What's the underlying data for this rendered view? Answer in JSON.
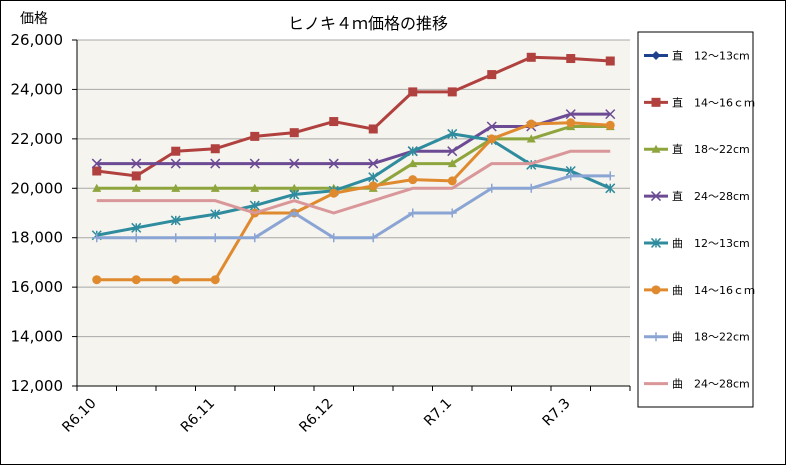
{
  "chart_data": {
    "type": "line",
    "title": "ヒノキ４ｍ価格の推移",
    "ylabel": "価格",
    "xlabel": "",
    "ylim": [
      12000,
      26000
    ],
    "yticks": [
      "12,000",
      "14,000",
      "16,000",
      "18,000",
      "20,000",
      "22,000",
      "24,000",
      "26,000"
    ],
    "x_labels": [
      {
        "index": 0,
        "label": "R6.10"
      },
      {
        "index": 3,
        "label": "R6.11"
      },
      {
        "index": 6,
        "label": "R6.12"
      },
      {
        "index": 9,
        "label": "R7.1"
      },
      {
        "index": 12,
        "label": "R7.3"
      }
    ],
    "grid": "horizontal",
    "legend_position": "right",
    "series": [
      {
        "name": "直　12～13cm",
        "color": "#1f3f8f",
        "marker": "diamond",
        "values": [
          null,
          null,
          null,
          null,
          null,
          null,
          null,
          null,
          null,
          null,
          null,
          null,
          null,
          null
        ]
      },
      {
        "name": "直　14～16ｃｍ",
        "color": "#b0413e",
        "marker": "square",
        "values": [
          20700,
          20500,
          21500,
          21600,
          22100,
          22250,
          22700,
          22400,
          23900,
          23900,
          24600,
          25300,
          25250,
          25150
        ]
      },
      {
        "name": "直　18～22cm",
        "color": "#8ea53e",
        "marker": "triangle",
        "values": [
          20000,
          20000,
          20000,
          20000,
          20000,
          20000,
          20000,
          20000,
          21000,
          21000,
          22000,
          22000,
          22500,
          22500
        ]
      },
      {
        "name": "直　24～28cm",
        "color": "#6c4b94",
        "marker": "x",
        "values": [
          21000,
          21000,
          21000,
          21000,
          21000,
          21000,
          21000,
          21000,
          21500,
          21500,
          22500,
          22500,
          23000,
          23000
        ]
      },
      {
        "name": "曲　12～13cm",
        "color": "#2f8c9e",
        "marker": "star",
        "values": [
          18100,
          18400,
          18700,
          18950,
          19300,
          19750,
          19900,
          20450,
          21500,
          22200,
          21950,
          20950,
          20700,
          20000
        ]
      },
      {
        "name": "曲　14～16ｃｍ",
        "color": "#e08a2f",
        "marker": "circle",
        "values": [
          16300,
          16300,
          16300,
          16300,
          19000,
          19000,
          19800,
          20100,
          20350,
          20300,
          22000,
          22600,
          22650,
          22550
        ]
      },
      {
        "name": "曲　18～22cm",
        "color": "#8aa4d4",
        "marker": "plus",
        "values": [
          18000,
          18000,
          18000,
          18000,
          18000,
          19000,
          18000,
          18000,
          19000,
          19000,
          20000,
          20000,
          20500,
          20500
        ]
      },
      {
        "name": "曲　24～28cm",
        "color": "#d9979a",
        "marker": "none",
        "values": [
          19500,
          19500,
          19500,
          19500,
          19000,
          19500,
          19000,
          19500,
          20000,
          20000,
          21000,
          21000,
          21500,
          21500
        ]
      }
    ]
  }
}
